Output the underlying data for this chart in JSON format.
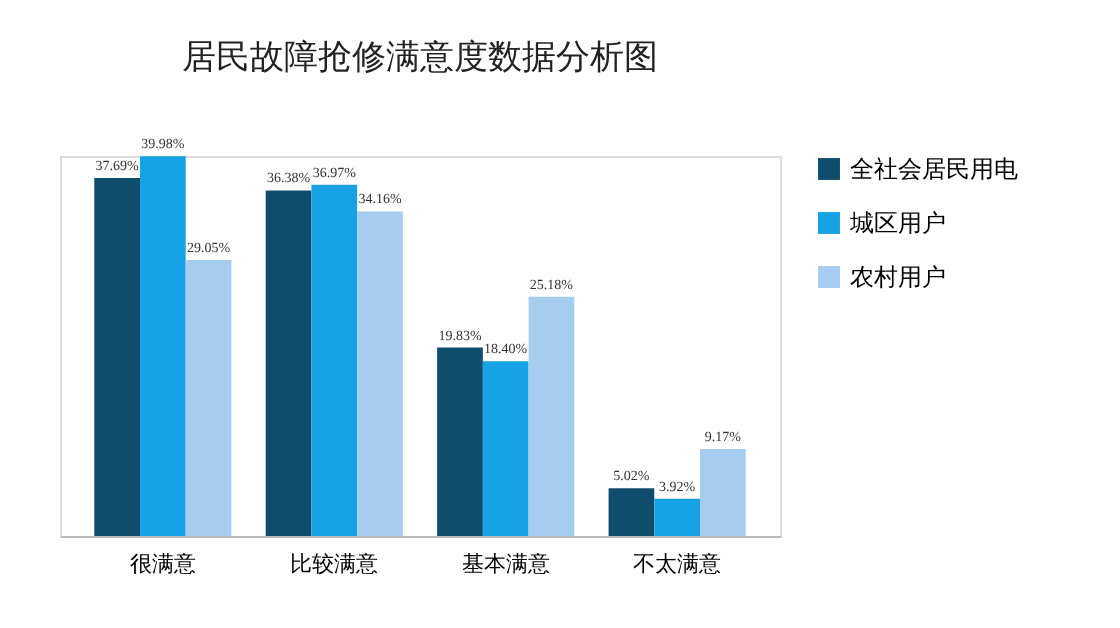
{
  "chart_data": {
    "type": "bar",
    "title": "居民故障抢修满意度数据分析图",
    "categories": [
      "很满意",
      "比较满意",
      "基本满意",
      "不太满意"
    ],
    "series": [
      {
        "name": "全社会居民用电",
        "color": "#0e4d6b",
        "values": [
          37.69,
          36.38,
          19.83,
          5.02
        ],
        "value_labels": [
          "37.69%",
          "36.38%",
          "19.83%",
          "5.02%"
        ]
      },
      {
        "name": "城区用户",
        "color": "#17a2e6",
        "values": [
          39.98,
          36.97,
          18.4,
          3.92
        ],
        "value_labels": [
          "39.98%",
          "36.97%",
          "18.40%",
          "3.92%"
        ]
      },
      {
        "name": "农村用户",
        "color": "#a6cdf0",
        "values": [
          29.05,
          34.16,
          25.18,
          9.17
        ],
        "value_labels": [
          "29.05%",
          "34.16%",
          "25.18%",
          "9.17%"
        ]
      }
    ],
    "legend": "right",
    "tick_labels": "x",
    "grid": false
  }
}
